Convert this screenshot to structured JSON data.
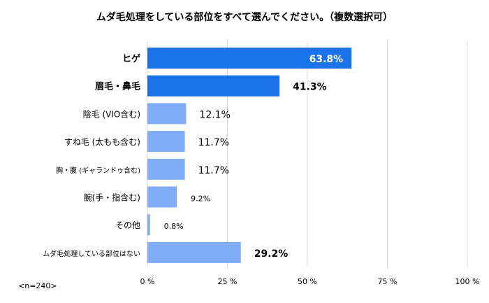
{
  "chart_data": {
    "type": "bar",
    "orientation": "horizontal",
    "title": "ムダ毛処理をしている部位をすべて選んでください。（複数選択可）",
    "note": "<n=240>",
    "categories": [
      "ヒゲ",
      "眉毛・鼻毛",
      "陰毛 (VIO含む)",
      "すね毛 (太もも含む)",
      "胸・腹 (ギャランドゥ含む)",
      "腕(手・指含む)",
      "その他",
      "ムダ毛処理している部位はない"
    ],
    "values": [
      63.8,
      41.3,
      12.1,
      11.7,
      11.7,
      9.2,
      0.8,
      29.2
    ],
    "value_labels": [
      "63.8%",
      "41.3%",
      "12.1%",
      "11.7%",
      "11.7%",
      "9.2%",
      "0.8%",
      "29.2%"
    ],
    "highlighted": [
      true,
      true,
      false,
      false,
      false,
      false,
      false,
      false
    ],
    "xlim": [
      0,
      100
    ],
    "x_ticks": [
      0,
      25,
      50,
      75,
      100
    ],
    "x_tick_labels": [
      "0 %",
      "25 %",
      "50 %",
      "75 %",
      "100 %"
    ],
    "grid": true,
    "colors": {
      "highlight": "#1a73e8",
      "normal": "#7facf5",
      "grid": "#d9d9d9"
    }
  }
}
